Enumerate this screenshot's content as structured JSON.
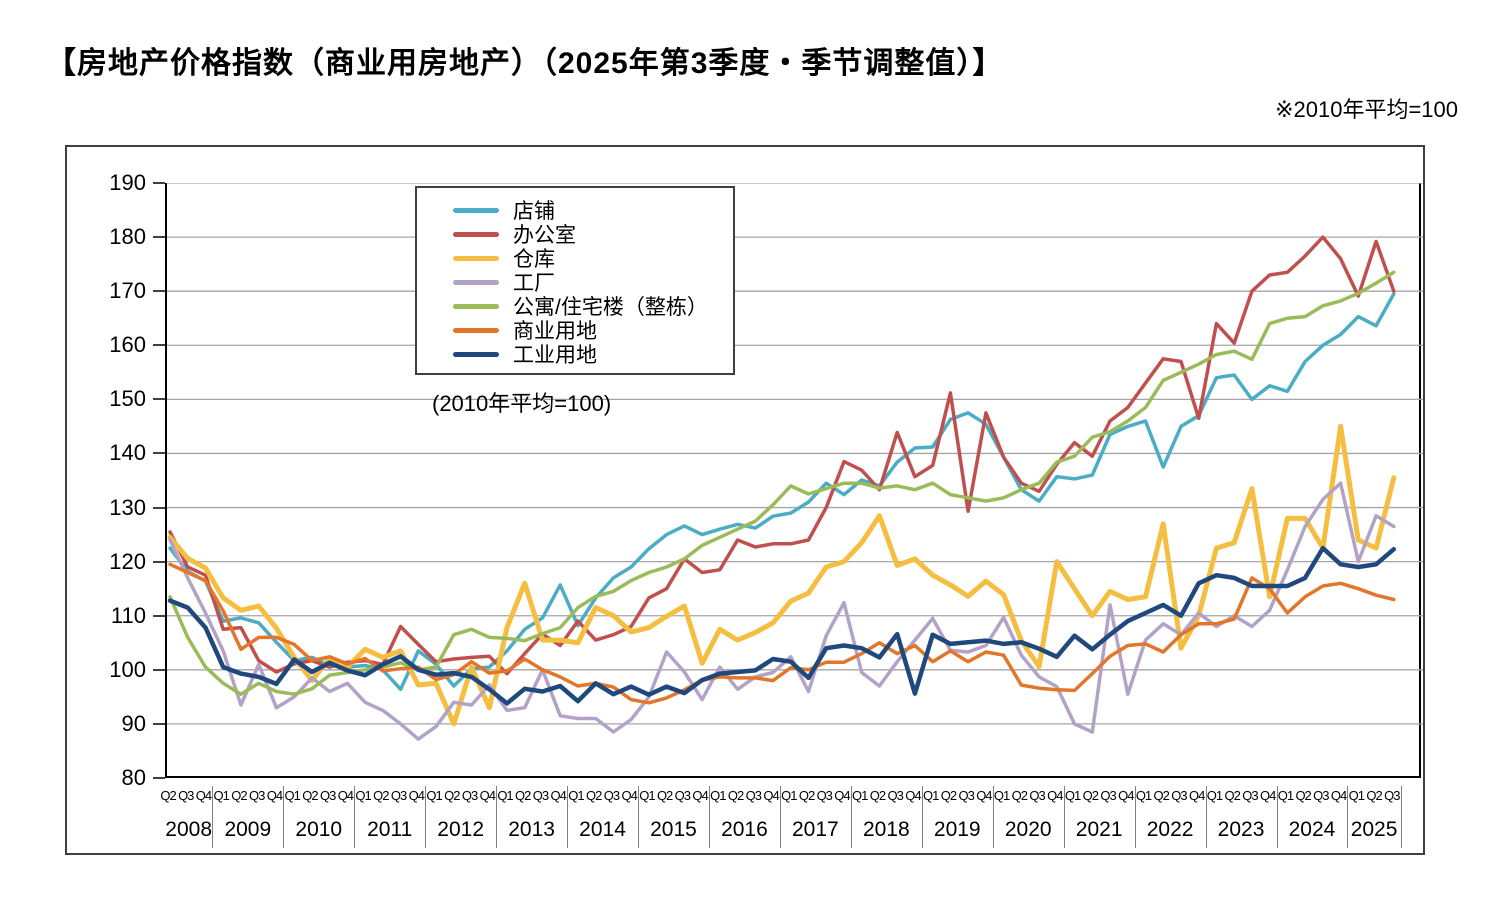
{
  "page": {
    "title": "【房地产价格指数（商业用房地产）（2025年第3季度・季节调整值）】",
    "note": "※2010年平均=100",
    "legend_note": "(2010年平均=100)"
  },
  "chart_data": {
    "type": "line",
    "title": "房地产价格指数（商业用房地产）2025年第3季度 季节调整值",
    "ylabel": "指数 (2010年平均=100)",
    "ylim": [
      80,
      190
    ],
    "y_step": 10,
    "grid": "horizontal",
    "legend_position": "top-left-inside",
    "x_axis": {
      "year_groups": [
        {
          "label": "2008",
          "quarters": [
            "Q2",
            "Q3",
            "Q4"
          ]
        },
        {
          "label": "2009",
          "quarters": [
            "Q1",
            "Q2",
            "Q3",
            "Q4"
          ]
        },
        {
          "label": "2010",
          "quarters": [
            "Q1",
            "Q2",
            "Q3",
            "Q4"
          ]
        },
        {
          "label": "2011",
          "quarters": [
            "Q1",
            "Q2",
            "Q3",
            "Q4"
          ]
        },
        {
          "label": "2012",
          "quarters": [
            "Q1",
            "Q2",
            "Q3",
            "Q4"
          ]
        },
        {
          "label": "2013",
          "quarters": [
            "Q1",
            "Q2",
            "Q3",
            "Q4"
          ]
        },
        {
          "label": "2014",
          "quarters": [
            "Q1",
            "Q2",
            "Q3",
            "Q4"
          ]
        },
        {
          "label": "2015",
          "quarters": [
            "Q1",
            "Q2",
            "Q3",
            "Q4"
          ]
        },
        {
          "label": "2016",
          "quarters": [
            "Q1",
            "Q2",
            "Q3",
            "Q4"
          ]
        },
        {
          "label": "2017",
          "quarters": [
            "Q1",
            "Q2",
            "Q3",
            "Q4"
          ]
        },
        {
          "label": "2018",
          "quarters": [
            "Q1",
            "Q2",
            "Q3",
            "Q4"
          ]
        },
        {
          "label": "2019",
          "quarters": [
            "Q1",
            "Q2",
            "Q3",
            "Q4"
          ]
        },
        {
          "label": "2020",
          "quarters": [
            "Q1",
            "Q2",
            "Q3",
            "Q4"
          ]
        },
        {
          "label": "2021",
          "quarters": [
            "Q1",
            "Q2",
            "Q3",
            "Q4"
          ]
        },
        {
          "label": "2022",
          "quarters": [
            "Q1",
            "Q2",
            "Q3",
            "Q4"
          ]
        },
        {
          "label": "2023",
          "quarters": [
            "Q1",
            "Q2",
            "Q3",
            "Q4"
          ]
        },
        {
          "label": "2024",
          "quarters": [
            "Q1",
            "Q2",
            "Q3",
            "Q4"
          ]
        },
        {
          "label": "2025",
          "quarters": [
            "Q1",
            "Q2",
            "Q3"
          ]
        }
      ]
    },
    "series": [
      {
        "key": "store",
        "label": "店铺",
        "color": "#4BACC6",
        "width": 3.5,
        "values": [
          122.5,
          118.2,
          116.4,
          109,
          109.6,
          108.7,
          105.1,
          101.7,
          102.3,
          100.8,
          100.5,
          100.8,
          100,
          96.4,
          103.5,
          101,
          97,
          100.2,
          100.5,
          103.5,
          107.5,
          109.6,
          115.7,
          108.2,
          113.3,
          117,
          119,
          122.4,
          125,
          126.6,
          125,
          126,
          126.9,
          126.2,
          128.4,
          129,
          131,
          134.5,
          132.4,
          135.1,
          134,
          138.4,
          141,
          141.2,
          146.3,
          147.5,
          145.4,
          139.3,
          133.3,
          131.2,
          135.7,
          135.3,
          136,
          143.5,
          145,
          146,
          137.5,
          145,
          147,
          154,
          154.5,
          150,
          152.5,
          151.5,
          157,
          160,
          162,
          165.3,
          163.6,
          169.5
        ]
      },
      {
        "key": "office",
        "label": "办公室",
        "color": "#C0504D",
        "width": 3.5,
        "values": [
          125.5,
          119,
          117.5,
          107.5,
          107.8,
          101.7,
          99.6,
          101.1,
          101.7,
          100.5,
          101.4,
          101.7,
          101,
          108,
          104.7,
          101.5,
          102,
          102.3,
          102.5,
          99.3,
          103,
          106.6,
          104.5,
          109,
          105.5,
          106.5,
          108,
          113.3,
          115,
          120.5,
          118,
          118.5,
          124,
          122.7,
          123.3,
          123.3,
          124,
          130,
          138.5,
          136.9,
          133.3,
          143.9,
          135.7,
          137.8,
          151.2,
          129.3,
          147.5,
          139.3,
          134.5,
          133,
          138,
          142,
          139.5,
          146,
          148.5,
          153,
          157.5,
          157,
          146.5,
          164,
          160.4,
          170,
          173,
          173.5,
          176.5,
          180,
          176,
          169.1,
          179.2,
          170
        ]
      },
      {
        "key": "warehouse",
        "label": "仓库",
        "color": "#F5BE41",
        "width": 5,
        "values": [
          124.5,
          120.6,
          118.8,
          113.3,
          111,
          111.8,
          107.7,
          102.3,
          98,
          102.1,
          100.5,
          103.8,
          102.3,
          103.5,
          97.2,
          97.5,
          90,
          100.5,
          93,
          107.8,
          116,
          105.5,
          105.5,
          105,
          111.5,
          110,
          107,
          107.8,
          109.9,
          111.8,
          101.2,
          107.5,
          105.5,
          106.9,
          108.7,
          112.7,
          114.2,
          119,
          120,
          123.5,
          128.5,
          119.3,
          120.5,
          117.5,
          115.7,
          113.6,
          116.4,
          113.9,
          105.4,
          100.6,
          120,
          115,
          110,
          114.5,
          113,
          113.5,
          127,
          104,
          110,
          122.5,
          123.5,
          133.5,
          113.5,
          128,
          128,
          122.5,
          145,
          124,
          122.5,
          135.5
        ]
      },
      {
        "key": "factory",
        "label": "工厂",
        "color": "#B3A2C7",
        "width": 3.5,
        "values": [
          124,
          117,
          110.5,
          103.5,
          93.5,
          101,
          93,
          95,
          98.5,
          96,
          97.5,
          94,
          92.5,
          90,
          87.2,
          89.5,
          94,
          93.5,
          97.2,
          92.5,
          93,
          100,
          91.5,
          91,
          91,
          88.5,
          90.8,
          95,
          103.3,
          99.6,
          94.5,
          100.5,
          96.4,
          98.7,
          99.5,
          102.4,
          96,
          106.3,
          112.4,
          99.5,
          97,
          101.5,
          105.5,
          109.5,
          103.6,
          103.3,
          104.5,
          109.7,
          102.7,
          98.7,
          96.9,
          90,
          88.5,
          112,
          95.5,
          105.5,
          108.5,
          106.5,
          110.5,
          108,
          110,
          108,
          111,
          118.5,
          126.5,
          131.5,
          134.5,
          120,
          128.5,
          126.5
        ]
      },
      {
        "key": "apartment",
        "label": "公寓/住宅楼（整栋）",
        "color": "#9BBB59",
        "width": 3.5,
        "values": [
          113.5,
          106,
          100.5,
          97.5,
          95.5,
          97.5,
          96,
          95.5,
          96.5,
          99,
          99.5,
          100,
          100.5,
          101.3,
          100,
          100.5,
          106.5,
          107.5,
          106,
          105.8,
          105.4,
          106.7,
          107.8,
          111.5,
          113.6,
          114.5,
          116.5,
          118,
          119,
          120.5,
          123,
          124.5,
          126,
          127.5,
          130.5,
          134,
          132.5,
          133.5,
          134.5,
          134.5,
          133.6,
          134,
          133.3,
          134.5,
          132.4,
          131.8,
          131.2,
          131.8,
          133.3,
          134.5,
          138.4,
          139.5,
          143,
          144,
          146,
          148.5,
          153.5,
          155,
          156.5,
          158.3,
          158.9,
          157.4,
          164,
          165,
          165.3,
          167.3,
          168.2,
          169.6,
          171.5,
          173.5
        ]
      },
      {
        "key": "commercial_land",
        "label": "商业用地",
        "color": "#E2762A",
        "width": 3.5,
        "values": [
          119.5,
          118,
          116.5,
          110.9,
          103.8,
          106,
          106,
          104.7,
          101.7,
          102.4,
          101.1,
          102.1,
          99.8,
          100.2,
          100.5,
          98.2,
          99.1,
          101.5,
          99.4,
          99.8,
          102,
          100,
          98.7,
          97,
          97.5,
          96.8,
          94.5,
          93.9,
          94.8,
          96.3,
          98.1,
          98.7,
          98.5,
          98.5,
          98,
          100.4,
          100,
          101.4,
          101.4,
          103,
          105,
          103,
          104.5,
          101.5,
          103.5,
          101.5,
          103.3,
          102.7,
          97.2,
          96.6,
          96.3,
          96.2,
          99.3,
          102.5,
          104.5,
          104.8,
          103.3,
          106.5,
          108.5,
          108.5,
          109.4,
          117,
          115,
          110.5,
          113.5,
          115.5,
          116,
          115,
          113.8,
          113
        ]
      },
      {
        "key": "industrial_land",
        "label": "工业用地",
        "color": "#1F497D",
        "width": 4.5,
        "values": [
          112.8,
          111.5,
          107.8,
          100.5,
          99.3,
          98.7,
          97.4,
          101.9,
          99.6,
          101.3,
          99.9,
          99,
          101,
          102.5,
          100,
          99.1,
          99.4,
          98.7,
          96.4,
          93.8,
          96.5,
          96,
          97,
          94.2,
          97.5,
          95.5,
          96.9,
          95.4,
          96.9,
          95.7,
          98.1,
          99.3,
          99.6,
          99.9,
          102,
          101.5,
          98.5,
          104,
          104.5,
          104,
          102.3,
          106.6,
          95.6,
          106.5,
          104.8,
          105.1,
          105.4,
          104.8,
          105.1,
          103.9,
          102.4,
          106.3,
          103.8,
          106.5,
          109,
          110.5,
          112,
          110,
          116,
          117.5,
          117,
          115.5,
          115.5,
          115.5,
          117,
          122.5,
          119.5,
          119,
          119.5,
          122.3
        ]
      }
    ]
  }
}
